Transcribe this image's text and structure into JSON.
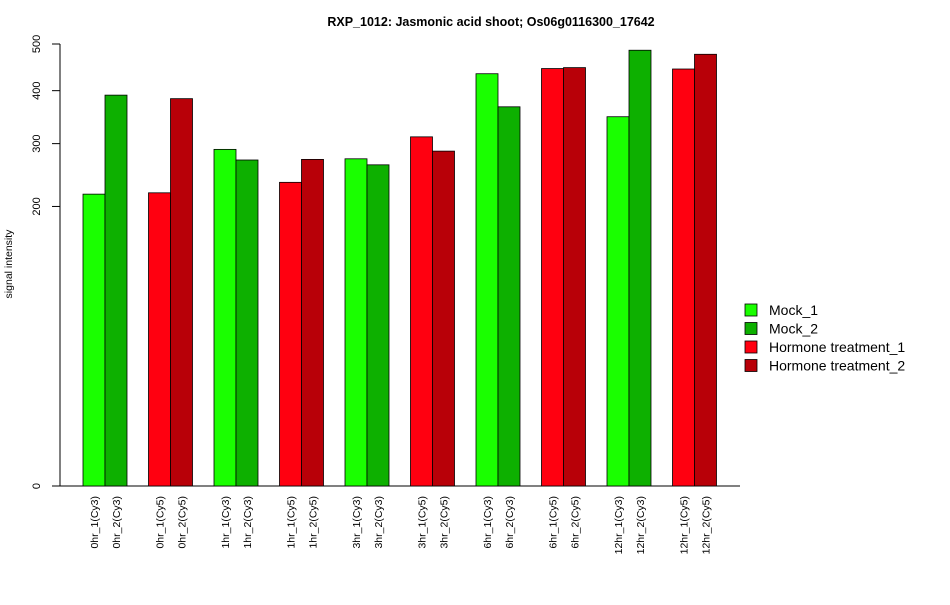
{
  "chart_data": {
    "type": "bar",
    "title": "RXP_1012: Jasmonic acid shoot; Os06g0116300_17642",
    "xlabel": "",
    "ylabel": "signal intensity",
    "y_scale": "square-root",
    "ylim": [
      0,
      500
    ],
    "y_ticks": [
      0,
      200,
      300,
      400,
      500
    ],
    "y_tick_labels": [
      "0",
      "200",
      "300",
      "400",
      "500"
    ],
    "legend_position": "right",
    "series": [
      {
        "name": "Mock_1",
        "color": "#1aff00"
      },
      {
        "name": "Mock_2",
        "color": "#0db000"
      },
      {
        "name": "Hormone treatment_1",
        "color": "#ff0010"
      },
      {
        "name": "Hormone treatment_2",
        "color": "#b80008"
      }
    ],
    "bars": [
      {
        "label": "0hr_1(Cy3)",
        "value": 218,
        "series": 0
      },
      {
        "label": "0hr_2(Cy3)",
        "value": 391,
        "series": 1
      },
      {
        "label": "0hr_1(Cy5)",
        "value": 220,
        "series": 2
      },
      {
        "label": "0hr_2(Cy5)",
        "value": 384,
        "series": 3
      },
      {
        "label": "1hr_1(Cy3)",
        "value": 290,
        "series": 0
      },
      {
        "label": "1hr_2(Cy3)",
        "value": 272,
        "series": 1
      },
      {
        "label": "1hr_1(Cy5)",
        "value": 236,
        "series": 2
      },
      {
        "label": "1hr_2(Cy5)",
        "value": 273,
        "series": 3
      },
      {
        "label": "3hr_1(Cy3)",
        "value": 274,
        "series": 0
      },
      {
        "label": "3hr_2(Cy3)",
        "value": 264,
        "series": 1
      },
      {
        "label": "3hr_1(Cy5)",
        "value": 312,
        "series": 2
      },
      {
        "label": "3hr_2(Cy5)",
        "value": 287,
        "series": 3
      },
      {
        "label": "6hr_1(Cy3)",
        "value": 435,
        "series": 0
      },
      {
        "label": "6hr_2(Cy3)",
        "value": 368,
        "series": 1
      },
      {
        "label": "6hr_1(Cy5)",
        "value": 446,
        "series": 2
      },
      {
        "label": "6hr_2(Cy5)",
        "value": 448,
        "series": 3
      },
      {
        "label": "12hr_1(Cy3)",
        "value": 349,
        "series": 0
      },
      {
        "label": "12hr_2(Cy3)",
        "value": 486,
        "series": 1
      },
      {
        "label": "12hr_1(Cy5)",
        "value": 445,
        "series": 2
      },
      {
        "label": "12hr_2(Cy5)",
        "value": 477,
        "series": 3
      }
    ]
  }
}
